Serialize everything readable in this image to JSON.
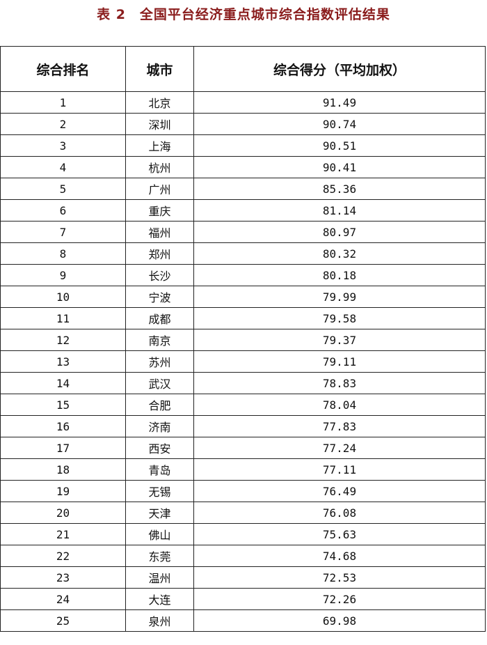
{
  "title": "表 2　全国平台经济重点城市综合指数评估结果",
  "colors": {
    "title": "#8a1c1c"
  },
  "table": {
    "headers": [
      "综合排名",
      "城市",
      "综合得分（平均加权）"
    ],
    "rows": [
      [
        "1",
        "北京",
        "91.49"
      ],
      [
        "2",
        "深圳",
        "90.74"
      ],
      [
        "3",
        "上海",
        "90.51"
      ],
      [
        "4",
        "杭州",
        "90.41"
      ],
      [
        "5",
        "广州",
        "85.36"
      ],
      [
        "6",
        "重庆",
        "81.14"
      ],
      [
        "7",
        "福州",
        "80.97"
      ],
      [
        "8",
        "郑州",
        "80.32"
      ],
      [
        "9",
        "长沙",
        "80.18"
      ],
      [
        "10",
        "宁波",
        "79.99"
      ],
      [
        "11",
        "成都",
        "79.58"
      ],
      [
        "12",
        "南京",
        "79.37"
      ],
      [
        "13",
        "苏州",
        "79.11"
      ],
      [
        "14",
        "武汉",
        "78.83"
      ],
      [
        "15",
        "合肥",
        "78.04"
      ],
      [
        "16",
        "济南",
        "77.83"
      ],
      [
        "17",
        "西安",
        "77.24"
      ],
      [
        "18",
        "青岛",
        "77.11"
      ],
      [
        "19",
        "无锡",
        "76.49"
      ],
      [
        "20",
        "天津",
        "76.08"
      ],
      [
        "21",
        "佛山",
        "75.63"
      ],
      [
        "22",
        "东莞",
        "74.68"
      ],
      [
        "23",
        "温州",
        "72.53"
      ],
      [
        "24",
        "大连",
        "72.26"
      ],
      [
        "25",
        "泉州",
        "69.98"
      ]
    ]
  }
}
